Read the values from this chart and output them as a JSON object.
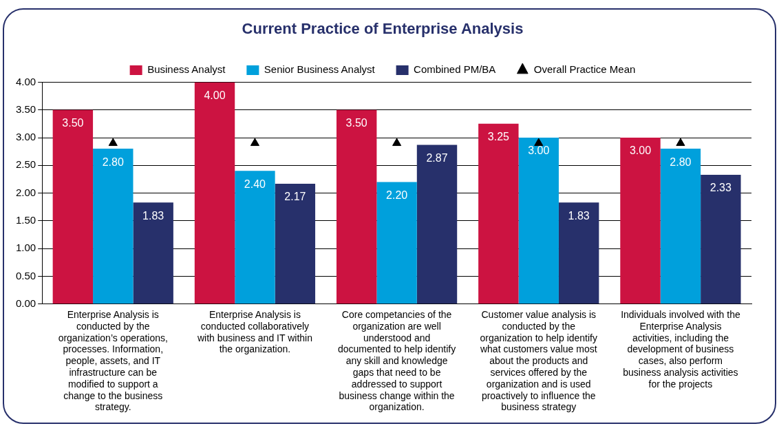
{
  "chart_data": {
    "type": "bar",
    "title": "Current Practice of Enterprise Analysis",
    "categories": [
      "Enterprise Analysis is conducted by the organization’s operations, processes. Information, people, assets, and IT infrastructure can be modified to support a change to the business strategy.",
      "Enterprise Analysis is conducted collaboratively with business and IT within the organization.",
      "Core competancies of the organization are well understood and documented to help identify any skill and knowledge gaps that need to be addressed to support business change within the organization.",
      "Customer value analysis is conducted by the organization to help identify what customers value most about the products and services offered by the organization and is used proactively to influence the business strategy",
      "Individuals involved with the Enterprise Analysis activities, including the development of business cases, also perform business analysis activities for the projects"
    ],
    "series": [
      {
        "name": "Business Analyst",
        "color": "#cc1341",
        "values": [
          3.5,
          4.0,
          3.5,
          3.25,
          3.0
        ],
        "value_labels": [
          "3.50",
          "4.00",
          "3.50",
          "3.25",
          "3.00"
        ]
      },
      {
        "name": "Senior Business Analyst",
        "color": "#00a0dc",
        "values": [
          2.8,
          2.4,
          2.2,
          3.0,
          2.8
        ],
        "value_labels": [
          "2.80",
          "2.40",
          "2.20",
          "3.00",
          "2.80"
        ]
      },
      {
        "name": "Combined PM/BA",
        "color": "#27306b",
        "values": [
          1.83,
          2.17,
          2.87,
          1.83,
          2.33
        ],
        "value_labels": [
          "1.83",
          "2.17",
          "2.87",
          "1.83",
          "2.33"
        ]
      },
      {
        "name": "Overall Practice Mean",
        "type": "scatter",
        "color": "#000000",
        "marker": "triangle",
        "x": [
          "Enterprise Analysis is conducted by the organization’s operations, processes. Information, people, assets, and IT infrastructure can be modified to support a change to the business strategy.",
          "Enterprise Analysis is conducted collaboratively with business and IT within the organization.",
          "Core competancies of the organization are well understood and documented to help identify any skill and knowledge gaps that need to be addressed to support business change within the organization.",
          "Customer value analysis is conducted by the organization to help identify what customers value most about the products and services offered by the organization and is used proactively to influence the business strategy",
          "Individuals involved with the Enterprise Analysis activities, including the development of business cases, also perform business analysis activities for the projects"
        ],
        "values": [
          2.9,
          2.9,
          2.9,
          2.9,
          2.9
        ]
      }
    ],
    "ylim": [
      0,
      4
    ],
    "yticks": [
      {
        "value": 0,
        "label": "0.00"
      },
      {
        "value": 0.5,
        "label": "0.50"
      },
      {
        "value": 1,
        "label": "1.00"
      },
      {
        "value": 1.5,
        "label": "1.50"
      },
      {
        "value": 2,
        "label": "2.00"
      },
      {
        "value": 2.5,
        "label": "2.50"
      },
      {
        "value": 3,
        "label": "3.00"
      },
      {
        "value": 3.5,
        "label": "3.50"
      },
      {
        "value": 4,
        "label": "4.00"
      }
    ],
    "grid": "y",
    "legend": "top"
  }
}
